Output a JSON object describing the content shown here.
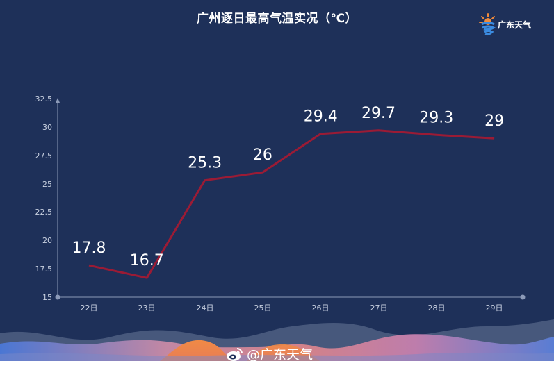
{
  "header": {
    "title": "广州逐日最高气温实况（℃）",
    "logo_text": "广东天气",
    "logo_icon": "sun-weather-logo-icon"
  },
  "footer": {
    "handle": "@广东天气",
    "icon": "weibo-icon"
  },
  "colors": {
    "background": "#1e3059",
    "line": "#9b1b35",
    "axis": "#8c9ab8",
    "label": "#ffffff",
    "tick_label": "#c8d0e0"
  },
  "chart_data": {
    "type": "line",
    "title": "广州逐日最高气温实况（℃）",
    "xlabel": "",
    "ylabel": "",
    "categories": [
      "22日",
      "23日",
      "24日",
      "25日",
      "26日",
      "27日",
      "28日",
      "29日"
    ],
    "series": [
      {
        "name": "最高气温",
        "values": [
          17.8,
          16.7,
          25.3,
          26,
          29.4,
          29.7,
          29.3,
          29
        ]
      }
    ],
    "value_labels": [
      "17.8",
      "16.7",
      "25.3",
      "26",
      "29.4",
      "29.7",
      "29.3",
      "29"
    ],
    "y_ticks": [
      "15",
      "17.5",
      "20",
      "22.5",
      "25",
      "27.5",
      "30",
      "32.5"
    ],
    "ylim": [
      15,
      32.5
    ],
    "grid": false,
    "legend": "none"
  }
}
